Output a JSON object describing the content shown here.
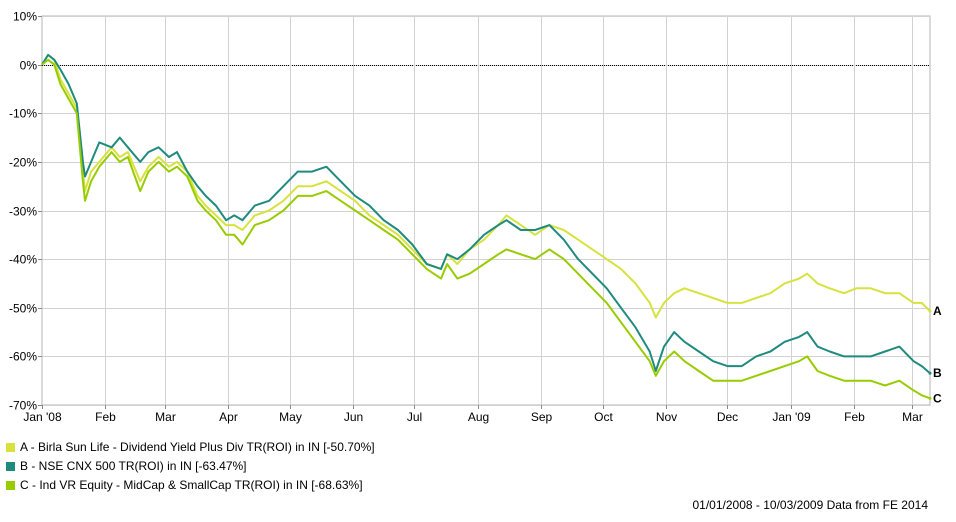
{
  "chart_data": {
    "type": "line",
    "y_unit": "%",
    "ylim": [
      -70,
      10
    ],
    "y_ticks": [
      "10%",
      "0%",
      "-10%",
      "-20%",
      "-30%",
      "-40%",
      "-50%",
      "-60%",
      "-70%"
    ],
    "x_ticks": [
      "Jan '08",
      "Feb",
      "Mar",
      "Apr",
      "May",
      "Jun",
      "Jul",
      "Aug",
      "Sep",
      "Oct",
      "Nov",
      "Dec",
      "Jan '09",
      "Feb",
      "Mar"
    ],
    "grid": true,
    "zero_line": "dotted",
    "x_start": "2008-01-01",
    "x_end": "2009-03-10",
    "legend_position": "bottom-left",
    "series": [
      {
        "id": "A",
        "color": "#d7e23e",
        "legend": "A - Birla Sun Life - Dividend Yield Plus Div TR(ROI) in IN [-50.70%]",
        "points": [
          [
            "2008-01-01",
            0
          ],
          [
            "2008-01-04",
            2
          ],
          [
            "2008-01-07",
            1
          ],
          [
            "2008-01-10",
            -3
          ],
          [
            "2008-01-14",
            -6
          ],
          [
            "2008-01-18",
            -9
          ],
          [
            "2008-01-21",
            -22
          ],
          [
            "2008-01-22",
            -26
          ],
          [
            "2008-01-25",
            -22
          ],
          [
            "2008-01-29",
            -20
          ],
          [
            "2008-02-04",
            -17
          ],
          [
            "2008-02-08",
            -19
          ],
          [
            "2008-02-12",
            -18
          ],
          [
            "2008-02-18",
            -24
          ],
          [
            "2008-02-22",
            -21
          ],
          [
            "2008-02-27",
            -19
          ],
          [
            "2008-03-03",
            -21
          ],
          [
            "2008-03-07",
            -20
          ],
          [
            "2008-03-12",
            -22
          ],
          [
            "2008-03-17",
            -27
          ],
          [
            "2008-03-21",
            -29
          ],
          [
            "2008-03-26",
            -31
          ],
          [
            "2008-03-31",
            -33
          ],
          [
            "2008-04-04",
            -33
          ],
          [
            "2008-04-08",
            -34
          ],
          [
            "2008-04-14",
            -31
          ],
          [
            "2008-04-21",
            -30
          ],
          [
            "2008-04-28",
            -28
          ],
          [
            "2008-05-05",
            -25
          ],
          [
            "2008-05-12",
            -25
          ],
          [
            "2008-05-19",
            -24
          ],
          [
            "2008-05-26",
            -26
          ],
          [
            "2008-06-02",
            -28
          ],
          [
            "2008-06-09",
            -31
          ],
          [
            "2008-06-16",
            -33
          ],
          [
            "2008-06-23",
            -35
          ],
          [
            "2008-06-30",
            -38
          ],
          [
            "2008-07-07",
            -41
          ],
          [
            "2008-07-14",
            -42
          ],
          [
            "2008-07-17",
            -39
          ],
          [
            "2008-07-22",
            -41
          ],
          [
            "2008-07-28",
            -38
          ],
          [
            "2008-08-04",
            -36
          ],
          [
            "2008-08-11",
            -33
          ],
          [
            "2008-08-15",
            -31
          ],
          [
            "2008-08-22",
            -33
          ],
          [
            "2008-08-29",
            -35
          ],
          [
            "2008-09-05",
            -33
          ],
          [
            "2008-09-12",
            -34
          ],
          [
            "2008-09-19",
            -36
          ],
          [
            "2008-09-26",
            -38
          ],
          [
            "2008-10-03",
            -40
          ],
          [
            "2008-10-10",
            -42
          ],
          [
            "2008-10-17",
            -45
          ],
          [
            "2008-10-24",
            -49
          ],
          [
            "2008-10-27",
            -52
          ],
          [
            "2008-10-31",
            -49
          ],
          [
            "2008-11-05",
            -47
          ],
          [
            "2008-11-10",
            -46
          ],
          [
            "2008-11-17",
            -47
          ],
          [
            "2008-11-24",
            -48
          ],
          [
            "2008-12-01",
            -49
          ],
          [
            "2008-12-08",
            -49
          ],
          [
            "2008-12-15",
            -48
          ],
          [
            "2008-12-22",
            -47
          ],
          [
            "2008-12-29",
            -45
          ],
          [
            "2009-01-05",
            -44
          ],
          [
            "2009-01-09",
            -43
          ],
          [
            "2009-01-14",
            -45
          ],
          [
            "2009-01-20",
            -46
          ],
          [
            "2009-01-27",
            -47
          ],
          [
            "2009-02-02",
            -46
          ],
          [
            "2009-02-09",
            -46
          ],
          [
            "2009-02-16",
            -47
          ],
          [
            "2009-02-23",
            -47
          ],
          [
            "2009-03-02",
            -49
          ],
          [
            "2009-03-06",
            -49
          ],
          [
            "2009-03-10",
            -50.7
          ]
        ]
      },
      {
        "id": "B",
        "color": "#1e8b7e",
        "legend": "B - NSE CNX 500 TR(ROI) in IN [-63.47%]",
        "points": [
          [
            "2008-01-01",
            0
          ],
          [
            "2008-01-04",
            2
          ],
          [
            "2008-01-07",
            1
          ],
          [
            "2008-01-10",
            -1
          ],
          [
            "2008-01-14",
            -4
          ],
          [
            "2008-01-18",
            -8
          ],
          [
            "2008-01-21",
            -20
          ],
          [
            "2008-01-22",
            -23
          ],
          [
            "2008-01-25",
            -20
          ],
          [
            "2008-01-29",
            -16
          ],
          [
            "2008-02-04",
            -17
          ],
          [
            "2008-02-08",
            -15
          ],
          [
            "2008-02-12",
            -17
          ],
          [
            "2008-02-18",
            -20
          ],
          [
            "2008-02-22",
            -18
          ],
          [
            "2008-02-27",
            -17
          ],
          [
            "2008-03-03",
            -19
          ],
          [
            "2008-03-07",
            -18
          ],
          [
            "2008-03-12",
            -22
          ],
          [
            "2008-03-17",
            -25
          ],
          [
            "2008-03-21",
            -27
          ],
          [
            "2008-03-26",
            -29
          ],
          [
            "2008-03-31",
            -32
          ],
          [
            "2008-04-04",
            -31
          ],
          [
            "2008-04-08",
            -32
          ],
          [
            "2008-04-14",
            -29
          ],
          [
            "2008-04-21",
            -28
          ],
          [
            "2008-04-28",
            -25
          ],
          [
            "2008-05-05",
            -22
          ],
          [
            "2008-05-12",
            -22
          ],
          [
            "2008-05-19",
            -21
          ],
          [
            "2008-05-26",
            -24
          ],
          [
            "2008-06-02",
            -27
          ],
          [
            "2008-06-09",
            -29
          ],
          [
            "2008-06-16",
            -32
          ],
          [
            "2008-06-23",
            -34
          ],
          [
            "2008-06-30",
            -37
          ],
          [
            "2008-07-07",
            -41
          ],
          [
            "2008-07-14",
            -42
          ],
          [
            "2008-07-17",
            -39
          ],
          [
            "2008-07-22",
            -40
          ],
          [
            "2008-07-28",
            -38
          ],
          [
            "2008-08-04",
            -35
          ],
          [
            "2008-08-11",
            -33
          ],
          [
            "2008-08-15",
            -32
          ],
          [
            "2008-08-22",
            -34
          ],
          [
            "2008-08-29",
            -34
          ],
          [
            "2008-09-05",
            -33
          ],
          [
            "2008-09-12",
            -36
          ],
          [
            "2008-09-19",
            -40
          ],
          [
            "2008-09-26",
            -43
          ],
          [
            "2008-10-03",
            -46
          ],
          [
            "2008-10-10",
            -50
          ],
          [
            "2008-10-17",
            -54
          ],
          [
            "2008-10-24",
            -59
          ],
          [
            "2008-10-27",
            -63
          ],
          [
            "2008-10-31",
            -58
          ],
          [
            "2008-11-05",
            -55
          ],
          [
            "2008-11-10",
            -57
          ],
          [
            "2008-11-17",
            -59
          ],
          [
            "2008-11-24",
            -61
          ],
          [
            "2008-12-01",
            -62
          ],
          [
            "2008-12-08",
            -62
          ],
          [
            "2008-12-15",
            -60
          ],
          [
            "2008-12-22",
            -59
          ],
          [
            "2008-12-29",
            -57
          ],
          [
            "2009-01-05",
            -56
          ],
          [
            "2009-01-09",
            -55
          ],
          [
            "2009-01-14",
            -58
          ],
          [
            "2009-01-20",
            -59
          ],
          [
            "2009-01-27",
            -60
          ],
          [
            "2009-02-02",
            -60
          ],
          [
            "2009-02-09",
            -60
          ],
          [
            "2009-02-16",
            -59
          ],
          [
            "2009-02-23",
            -58
          ],
          [
            "2009-03-02",
            -61
          ],
          [
            "2009-03-06",
            -62
          ],
          [
            "2009-03-10",
            -63.47
          ]
        ]
      },
      {
        "id": "C",
        "color": "#99cc00",
        "legend": "C - Ind VR Equity - MidCap & SmallCap TR(ROI) in IN [-68.63%]",
        "points": [
          [
            "2008-01-01",
            0
          ],
          [
            "2008-01-04",
            1
          ],
          [
            "2008-01-07",
            0
          ],
          [
            "2008-01-10",
            -4
          ],
          [
            "2008-01-14",
            -7
          ],
          [
            "2008-01-18",
            -10
          ],
          [
            "2008-01-21",
            -24
          ],
          [
            "2008-01-22",
            -28
          ],
          [
            "2008-01-25",
            -24
          ],
          [
            "2008-01-29",
            -21
          ],
          [
            "2008-02-04",
            -18
          ],
          [
            "2008-02-08",
            -20
          ],
          [
            "2008-02-12",
            -19
          ],
          [
            "2008-02-18",
            -26
          ],
          [
            "2008-02-22",
            -22
          ],
          [
            "2008-02-27",
            -20
          ],
          [
            "2008-03-03",
            -22
          ],
          [
            "2008-03-07",
            -21
          ],
          [
            "2008-03-12",
            -23
          ],
          [
            "2008-03-17",
            -28
          ],
          [
            "2008-03-21",
            -30
          ],
          [
            "2008-03-26",
            -32
          ],
          [
            "2008-03-31",
            -35
          ],
          [
            "2008-04-04",
            -35
          ],
          [
            "2008-04-08",
            -37
          ],
          [
            "2008-04-14",
            -33
          ],
          [
            "2008-04-21",
            -32
          ],
          [
            "2008-04-28",
            -30
          ],
          [
            "2008-05-05",
            -27
          ],
          [
            "2008-05-12",
            -27
          ],
          [
            "2008-05-19",
            -26
          ],
          [
            "2008-05-26",
            -28
          ],
          [
            "2008-06-02",
            -30
          ],
          [
            "2008-06-09",
            -32
          ],
          [
            "2008-06-16",
            -34
          ],
          [
            "2008-06-23",
            -36
          ],
          [
            "2008-06-30",
            -39
          ],
          [
            "2008-07-07",
            -42
          ],
          [
            "2008-07-14",
            -44
          ],
          [
            "2008-07-17",
            -41
          ],
          [
            "2008-07-22",
            -44
          ],
          [
            "2008-07-28",
            -43
          ],
          [
            "2008-08-04",
            -41
          ],
          [
            "2008-08-11",
            -39
          ],
          [
            "2008-08-15",
            -38
          ],
          [
            "2008-08-22",
            -39
          ],
          [
            "2008-08-29",
            -40
          ],
          [
            "2008-09-05",
            -38
          ],
          [
            "2008-09-12",
            -40
          ],
          [
            "2008-09-19",
            -43
          ],
          [
            "2008-09-26",
            -46
          ],
          [
            "2008-10-03",
            -49
          ],
          [
            "2008-10-10",
            -53
          ],
          [
            "2008-10-17",
            -57
          ],
          [
            "2008-10-24",
            -61
          ],
          [
            "2008-10-27",
            -64
          ],
          [
            "2008-10-31",
            -61
          ],
          [
            "2008-11-05",
            -59
          ],
          [
            "2008-11-10",
            -61
          ],
          [
            "2008-11-17",
            -63
          ],
          [
            "2008-11-24",
            -65
          ],
          [
            "2008-12-01",
            -65
          ],
          [
            "2008-12-08",
            -65
          ],
          [
            "2008-12-15",
            -64
          ],
          [
            "2008-12-22",
            -63
          ],
          [
            "2008-12-29",
            -62
          ],
          [
            "2009-01-05",
            -61
          ],
          [
            "2009-01-09",
            -60
          ],
          [
            "2009-01-14",
            -63
          ],
          [
            "2009-01-20",
            -64
          ],
          [
            "2009-01-27",
            -65
          ],
          [
            "2009-02-02",
            -65
          ],
          [
            "2009-02-09",
            -65
          ],
          [
            "2009-02-16",
            -66
          ],
          [
            "2009-02-23",
            -65
          ],
          [
            "2009-03-02",
            -67
          ],
          [
            "2009-03-06",
            -68
          ],
          [
            "2009-03-10",
            -68.63
          ]
        ]
      }
    ]
  },
  "footer": {
    "source": "01/01/2008 - 10/03/2009 Data from FE 2014"
  }
}
